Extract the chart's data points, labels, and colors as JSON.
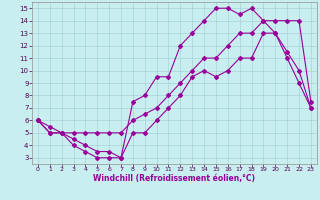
{
  "xlabel": "Windchill (Refroidissement éolien,°C)",
  "background_color": "#c8eef0",
  "line_color": "#990099",
  "xlim": [
    -0.5,
    23.5
  ],
  "ylim": [
    2.5,
    15.5
  ],
  "xticks": [
    0,
    1,
    2,
    3,
    4,
    5,
    6,
    7,
    8,
    9,
    10,
    11,
    12,
    13,
    14,
    15,
    16,
    17,
    18,
    19,
    20,
    21,
    22,
    23
  ],
  "yticks": [
    3,
    4,
    5,
    6,
    7,
    8,
    9,
    10,
    11,
    12,
    13,
    14,
    15
  ],
  "line1_x": [
    0,
    1,
    2,
    3,
    4,
    5,
    6,
    7,
    8,
    9,
    10,
    11,
    12,
    13,
    14,
    15,
    16,
    17,
    18,
    19,
    20,
    21,
    22,
    23
  ],
  "line1_y": [
    6,
    5,
    5,
    4,
    3.5,
    3,
    3,
    3,
    5,
    5,
    6,
    7,
    8,
    9.5,
    10,
    9.5,
    10,
    11,
    11,
    13,
    13,
    11.5,
    10,
    7
  ],
  "line2_x": [
    0,
    1,
    2,
    3,
    4,
    5,
    6,
    7,
    8,
    9,
    10,
    11,
    12,
    13,
    14,
    15,
    16,
    17,
    18,
    19,
    20,
    21,
    22,
    23
  ],
  "line2_y": [
    6,
    5,
    5,
    4.5,
    4,
    3.5,
    3.5,
    3,
    7.5,
    8,
    9.5,
    9.5,
    12,
    13,
    14,
    15,
    15,
    14.5,
    15,
    14,
    13,
    11,
    9,
    7
  ],
  "line3_x": [
    0,
    1,
    2,
    3,
    4,
    5,
    6,
    7,
    8,
    9,
    10,
    11,
    12,
    13,
    14,
    15,
    16,
    17,
    18,
    19,
    20,
    21,
    22,
    23
  ],
  "line3_y": [
    6,
    5.5,
    5,
    5,
    5,
    5,
    5,
    5,
    6,
    6.5,
    7,
    8,
    9,
    10,
    11,
    11,
    12,
    13,
    13,
    14,
    14,
    14,
    14,
    7.5
  ]
}
